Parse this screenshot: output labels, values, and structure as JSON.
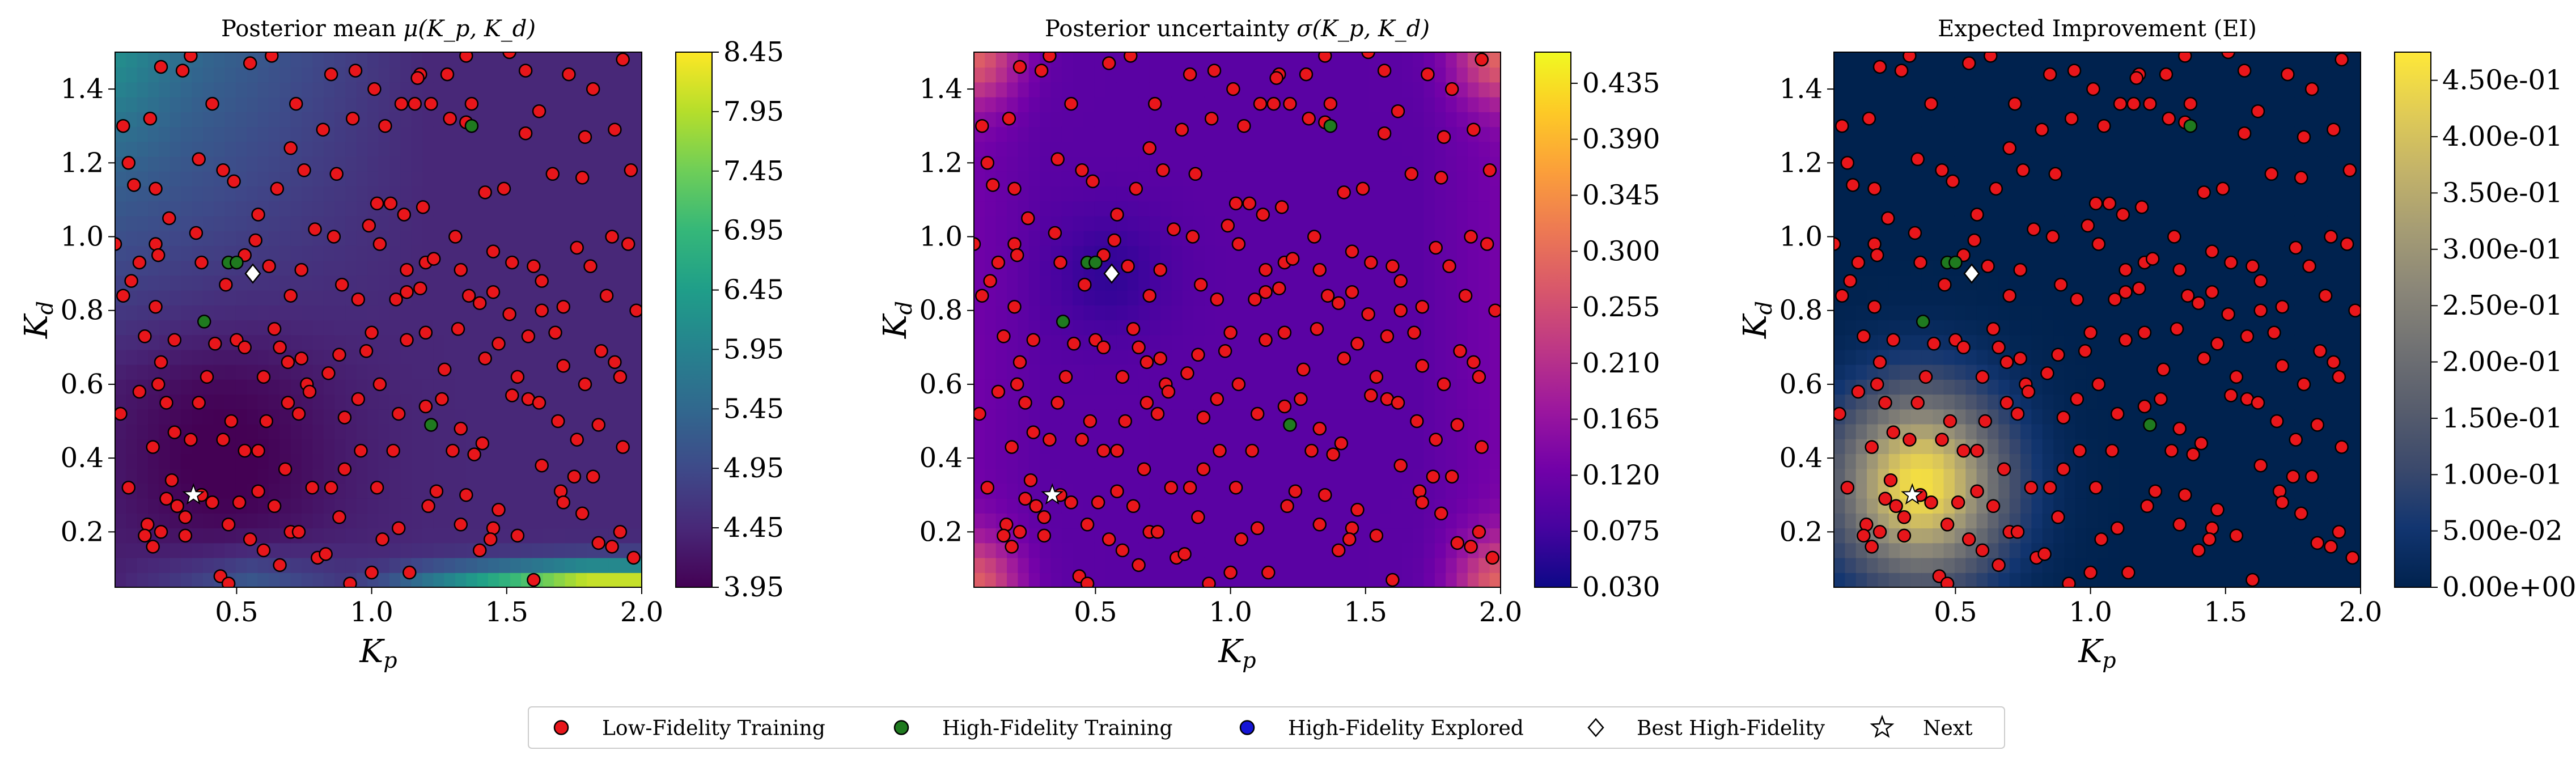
{
  "chart_data": [
    {
      "type": "heatmap",
      "title": "Posterior mean μ(K_p, K_d)",
      "title_parts": {
        "text": "Posterior mean ",
        "symbol": "μ",
        "args": "(K_p, K_d)"
      },
      "xlabel": "K_p",
      "ylabel": "K_d",
      "xlim": [
        0.05,
        2.0
      ],
      "ylim": [
        0.05,
        1.5
      ],
      "x_ticks": [
        0.5,
        1.0,
        1.5,
        2.0
      ],
      "x_tick_labels": [
        "0.5",
        "1.0",
        "1.5",
        "2.0"
      ],
      "y_ticks": [
        0.2,
        0.4,
        0.6,
        0.8,
        1.0,
        1.2,
        1.4
      ],
      "y_tick_labels": [
        "0.2",
        "0.4",
        "0.6",
        "0.8",
        "1.0",
        "1.2",
        "1.4"
      ],
      "colormap": "viridis",
      "colorbar_range": [
        3.95,
        8.45
      ],
      "colorbar_ticks": [
        "3.95",
        "4.45",
        "4.95",
        "5.45",
        "5.95",
        "6.45",
        "6.95",
        "7.45",
        "7.95",
        "8.45"
      ],
      "field_description": "low values (dark purple) around K_p≈0.4, K_d≈0.4; rising toward top-left and edges; high values (yellow-green) along bottom edge near K_p 1.2–2.0"
    },
    {
      "type": "heatmap",
      "title": "Posterior uncertainty σ(K_p, K_d)",
      "title_parts": {
        "text": "Posterior uncertainty ",
        "symbol": "σ",
        "args": "(K_p, K_d)"
      },
      "xlabel": "K_p",
      "ylabel": "K_d",
      "xlim": [
        0.05,
        2.0
      ],
      "ylim": [
        0.05,
        1.5
      ],
      "x_ticks": [
        0.5,
        1.0,
        1.5,
        2.0
      ],
      "x_tick_labels": [
        "0.5",
        "1.0",
        "1.5",
        "2.0"
      ],
      "y_ticks": [
        0.2,
        0.4,
        0.6,
        0.8,
        1.0,
        1.2,
        1.4
      ],
      "y_tick_labels": [
        "0.2",
        "0.4",
        "0.6",
        "0.8",
        "1.0",
        "1.2",
        "1.4"
      ],
      "colormap": "plasma",
      "colorbar_range": [
        0.03,
        0.46
      ],
      "colorbar_ticks": [
        "0.030",
        "0.075",
        "0.120",
        "0.165",
        "0.210",
        "0.255",
        "0.300",
        "0.345",
        "0.390",
        "0.435"
      ],
      "field_description": "low (dark blue) in the interior, higher (purple-magenta-orange) toward the corners"
    },
    {
      "type": "heatmap",
      "title": "Expected Improvement (EI)",
      "xlabel": "K_p",
      "ylabel": "K_d",
      "xlim": [
        0.05,
        2.0
      ],
      "ylim": [
        0.05,
        1.5
      ],
      "x_ticks": [
        0.5,
        1.0,
        1.5,
        2.0
      ],
      "x_tick_labels": [
        "0.5",
        "1.0",
        "1.5",
        "2.0"
      ],
      "y_ticks": [
        0.2,
        0.4,
        0.6,
        0.8,
        1.0,
        1.2,
        1.4
      ],
      "y_tick_labels": [
        "0.2",
        "0.4",
        "0.6",
        "0.8",
        "1.0",
        "1.2",
        "1.4"
      ],
      "colormap": "cividis",
      "colorbar_range": [
        0.0,
        0.475
      ],
      "colorbar_ticks": [
        "0.00e+00",
        "5.00e-02",
        "1.00e-01",
        "1.50e-01",
        "2.00e-01",
        "2.50e-01",
        "3.00e-01",
        "3.50e-01",
        "4.00e-01",
        "4.50e-01"
      ],
      "field_description": "peak (yellow) around K_p≈0.35, K_d≈0.3, decaying to zero (navy) elsewhere"
    }
  ],
  "scatter": {
    "low_fidelity_training": [
      [
        0.08,
        1.3
      ],
      [
        0.12,
        1.14
      ],
      [
        0.22,
        1.46
      ],
      [
        0.3,
        1.45
      ],
      [
        0.33,
        1.49
      ],
      [
        0.36,
        1.21
      ],
      [
        0.2,
        1.13
      ],
      [
        0.1,
        1.2
      ],
      [
        0.18,
        1.32
      ],
      [
        0.45,
        1.18
      ],
      [
        0.49,
        1.15
      ],
      [
        0.58,
        1.06
      ],
      [
        0.65,
        1.13
      ],
      [
        0.75,
        1.18
      ],
      [
        0.7,
        1.24
      ],
      [
        0.55,
        1.47
      ],
      [
        0.63,
        1.49
      ],
      [
        0.72,
        1.36
      ],
      [
        0.82,
        1.29
      ],
      [
        0.93,
        1.32
      ],
      [
        0.94,
        1.45
      ],
      [
        1.01,
        1.4
      ],
      [
        1.05,
        1.3
      ],
      [
        1.11,
        1.36
      ],
      [
        0.85,
        1.44
      ],
      [
        1.16,
        1.36
      ],
      [
        1.18,
        1.44
      ],
      [
        1.02,
        1.09
      ],
      [
        1.07,
        1.09
      ],
      [
        1.12,
        1.06
      ],
      [
        1.22,
        1.36
      ],
      [
        1.29,
        1.32
      ],
      [
        1.37,
        1.36
      ],
      [
        1.42,
        1.12
      ],
      [
        1.49,
        1.13
      ],
      [
        1.57,
        1.28
      ],
      [
        1.62,
        1.34
      ],
      [
        1.67,
        1.17
      ],
      [
        1.78,
        1.16
      ],
      [
        1.79,
        1.27
      ],
      [
        1.9,
        1.29
      ],
      [
        1.93,
        1.48
      ],
      [
        1.96,
        1.18
      ],
      [
        1.82,
        1.4
      ],
      [
        1.73,
        1.44
      ],
      [
        1.57,
        1.45
      ],
      [
        1.51,
        1.5
      ],
      [
        1.35,
        1.49
      ],
      [
        1.28,
        1.44
      ],
      [
        1.17,
        1.43
      ],
      [
        0.05,
        0.98
      ],
      [
        0.11,
        0.88
      ],
      [
        0.14,
        0.93
      ],
      [
        0.2,
        0.98
      ],
      [
        0.21,
        0.95
      ],
      [
        0.25,
        1.05
      ],
      [
        0.35,
        1.01
      ],
      [
        0.37,
        0.93
      ],
      [
        0.46,
        0.87
      ],
      [
        0.57,
        0.99
      ],
      [
        0.62,
        0.92
      ],
      [
        0.7,
        0.84
      ],
      [
        0.74,
        0.91
      ],
      [
        0.86,
        1.0
      ],
      [
        1.03,
        0.98
      ],
      [
        1.13,
        0.91
      ],
      [
        1.18,
        0.86
      ],
      [
        1.2,
        0.93
      ],
      [
        1.23,
        0.94
      ],
      [
        1.31,
        1.0
      ],
      [
        1.33,
        0.91
      ],
      [
        1.45,
        0.96
      ],
      [
        1.52,
        0.93
      ],
      [
        1.45,
        0.85
      ],
      [
        1.6,
        0.92
      ],
      [
        1.63,
        0.88
      ],
      [
        1.76,
        0.97
      ],
      [
        1.81,
        0.92
      ],
      [
        1.89,
        1.0
      ],
      [
        1.95,
        0.98
      ],
      [
        1.98,
        0.8
      ],
      [
        1.87,
        0.84
      ],
      [
        1.71,
        0.81
      ],
      [
        1.63,
        0.8
      ],
      [
        1.4,
        0.82
      ],
      [
        1.36,
        0.84
      ],
      [
        1.13,
        0.85
      ],
      [
        1.09,
        0.83
      ],
      [
        0.95,
        0.83
      ],
      [
        0.89,
        0.87
      ],
      [
        0.08,
        0.84
      ],
      [
        0.2,
        0.81
      ],
      [
        0.16,
        0.73
      ],
      [
        0.22,
        0.66
      ],
      [
        0.27,
        0.72
      ],
      [
        0.42,
        0.71
      ],
      [
        0.5,
        0.72
      ],
      [
        0.53,
        0.7
      ],
      [
        0.64,
        0.75
      ],
      [
        0.66,
        0.7
      ],
      [
        0.69,
        0.66
      ],
      [
        0.74,
        0.67
      ],
      [
        0.76,
        0.6
      ],
      [
        0.84,
        0.63
      ],
      [
        0.88,
        0.68
      ],
      [
        0.98,
        0.69
      ],
      [
        1.0,
        0.74
      ],
      [
        1.13,
        0.72
      ],
      [
        1.2,
        0.74
      ],
      [
        1.32,
        0.75
      ],
      [
        1.42,
        0.67
      ],
      [
        1.47,
        0.71
      ],
      [
        1.51,
        0.79
      ],
      [
        1.58,
        0.73
      ],
      [
        1.68,
        0.74
      ],
      [
        1.71,
        0.65
      ],
      [
        1.79,
        0.6
      ],
      [
        1.85,
        0.69
      ],
      [
        1.9,
        0.66
      ],
      [
        1.92,
        0.62
      ],
      [
        0.07,
        0.52
      ],
      [
        0.14,
        0.58
      ],
      [
        0.21,
        0.6
      ],
      [
        0.24,
        0.55
      ],
      [
        0.27,
        0.47
      ],
      [
        0.33,
        0.45
      ],
      [
        0.36,
        0.55
      ],
      [
        0.45,
        0.45
      ],
      [
        0.48,
        0.5
      ],
      [
        0.53,
        0.42
      ],
      [
        0.58,
        0.42
      ],
      [
        0.61,
        0.5
      ],
      [
        0.69,
        0.55
      ],
      [
        0.73,
        0.52
      ],
      [
        0.77,
        0.58
      ],
      [
        0.9,
        0.51
      ],
      [
        0.95,
        0.56
      ],
      [
        0.96,
        0.42
      ],
      [
        1.03,
        0.6
      ],
      [
        1.1,
        0.52
      ],
      [
        1.2,
        0.54
      ],
      [
        1.26,
        0.56
      ],
      [
        1.33,
        0.48
      ],
      [
        1.38,
        0.41
      ],
      [
        1.41,
        0.44
      ],
      [
        1.52,
        0.57
      ],
      [
        1.58,
        0.56
      ],
      [
        1.62,
        0.55
      ],
      [
        1.69,
        0.5
      ],
      [
        1.76,
        0.45
      ],
      [
        1.84,
        0.49
      ],
      [
        1.93,
        0.43
      ],
      [
        0.1,
        0.32
      ],
      [
        0.17,
        0.22
      ],
      [
        0.24,
        0.29
      ],
      [
        0.26,
        0.34
      ],
      [
        0.28,
        0.27
      ],
      [
        0.31,
        0.24
      ],
      [
        0.37,
        0.3
      ],
      [
        0.41,
        0.28
      ],
      [
        0.47,
        0.22
      ],
      [
        0.51,
        0.28
      ],
      [
        0.55,
        0.18
      ],
      [
        0.58,
        0.31
      ],
      [
        0.64,
        0.27
      ],
      [
        0.7,
        0.2
      ],
      [
        0.73,
        0.2
      ],
      [
        0.85,
        0.32
      ],
      [
        0.88,
        0.24
      ],
      [
        0.9,
        0.37
      ],
      [
        1.02,
        0.32
      ],
      [
        1.04,
        0.18
      ],
      [
        1.1,
        0.21
      ],
      [
        1.21,
        0.27
      ],
      [
        1.24,
        0.31
      ],
      [
        1.3,
        0.42
      ],
      [
        1.33,
        0.22
      ],
      [
        1.35,
        0.3
      ],
      [
        1.45,
        0.21
      ],
      [
        1.47,
        0.26
      ],
      [
        1.54,
        0.19
      ],
      [
        1.63,
        0.38
      ],
      [
        1.7,
        0.31
      ],
      [
        1.71,
        0.28
      ],
      [
        1.75,
        0.35
      ],
      [
        1.78,
        0.25
      ],
      [
        1.84,
        0.17
      ],
      [
        1.89,
        0.16
      ],
      [
        1.92,
        0.2
      ],
      [
        1.97,
        0.13
      ],
      [
        1.82,
        0.35
      ],
      [
        0.16,
        0.19
      ],
      [
        0.19,
        0.16
      ],
      [
        0.22,
        0.2
      ],
      [
        0.31,
        0.19
      ],
      [
        0.44,
        0.08
      ],
      [
        0.47,
        0.06
      ],
      [
        0.6,
        0.15
      ],
      [
        0.66,
        0.11
      ],
      [
        0.8,
        0.13
      ],
      [
        0.83,
        0.14
      ],
      [
        0.92,
        0.06
      ],
      [
        1.0,
        0.09
      ],
      [
        1.14,
        0.09
      ],
      [
        1.4,
        0.15
      ],
      [
        1.44,
        0.18
      ],
      [
        1.6,
        0.07
      ],
      [
        1.08,
        0.42
      ],
      [
        1.35,
        1.31
      ],
      [
        0.53,
        0.95
      ],
      [
        0.79,
        1.02
      ],
      [
        0.99,
        1.03
      ],
      [
        1.19,
        1.08
      ],
      [
        0.87,
        1.17
      ],
      [
        0.41,
        1.36
      ],
      [
        1.27,
        0.64
      ],
      [
        0.39,
        0.62
      ],
      [
        0.19,
        0.43
      ],
      [
        0.68,
        0.37
      ],
      [
        0.78,
        0.32
      ],
      [
        0.6,
        0.62
      ],
      [
        1.54,
        0.62
      ]
    ],
    "high_fidelity_training": [
      [
        0.47,
        0.93
      ],
      [
        0.5,
        0.93
      ],
      [
        0.38,
        0.77
      ],
      [
        1.22,
        0.49
      ],
      [
        1.37,
        1.3
      ]
    ],
    "high_fidelity_explored": [],
    "best_high_fidelity": [
      0.56,
      0.9
    ],
    "next": [
      0.34,
      0.3
    ]
  },
  "colors": {
    "low_fidelity": "#e8161b",
    "high_fidelity_training": "#1f7a1f",
    "high_fidelity_explored": "#1515d6",
    "best": "#ffffff",
    "next": "#ffffff"
  },
  "legend": {
    "items": [
      {
        "label": "Low-Fidelity Training",
        "marker": "circle",
        "color": "#e8161b"
      },
      {
        "label": "High-Fidelity Training",
        "marker": "circle",
        "color": "#1f7a1f"
      },
      {
        "label": "High-Fidelity Explored",
        "marker": "circle",
        "color": "#1515d6"
      },
      {
        "label": "Best High-Fidelity",
        "marker": "diamond",
        "color": "#ffffff"
      },
      {
        "label": "Next",
        "marker": "star",
        "color": "#ffffff"
      }
    ]
  }
}
